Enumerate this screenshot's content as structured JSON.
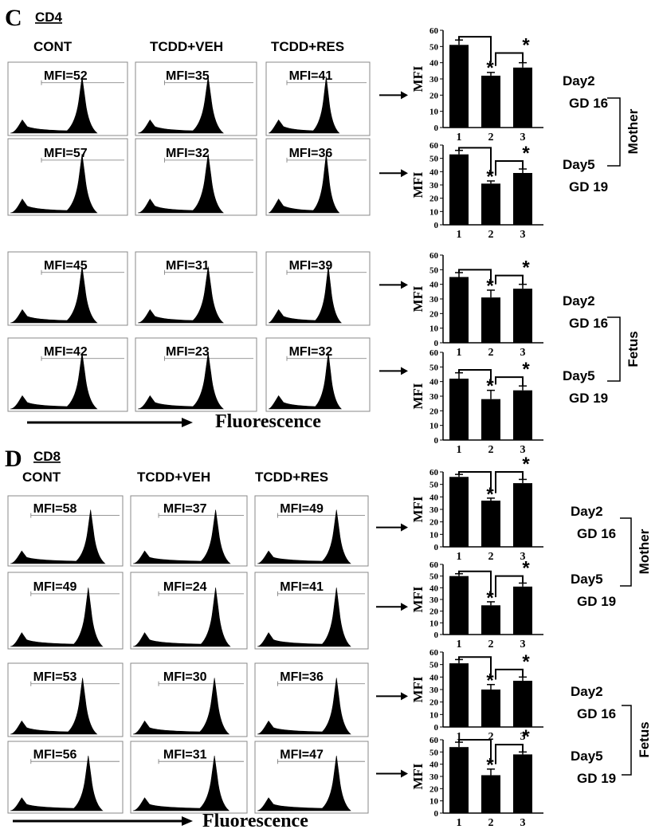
{
  "chart_data": [
    {
      "type": "bar",
      "panel": "C",
      "marker": "CD4",
      "column_headers": [
        "CONT",
        "TCDD+VEH",
        "TCDD+RES"
      ],
      "x_axis_label": "Fluorescence",
      "ylabel": "MFI",
      "categories": [
        "1",
        "2",
        "3"
      ],
      "ylim": [
        0,
        60
      ],
      "yticks": [
        0,
        10,
        20,
        30,
        40,
        50,
        60
      ],
      "rows": [
        {
          "day": "Day2",
          "gd": "GD 16",
          "group": "Mother",
          "mfi_labels": [
            "MFI=52",
            "MFI=35",
            "MFI=41"
          ],
          "values": [
            51,
            32,
            37
          ],
          "errors": [
            3,
            2,
            3
          ]
        },
        {
          "day": "Day5",
          "gd": "GD 19",
          "group": "Mother",
          "mfi_labels": [
            "MFI=57",
            "MFI=32",
            "MFI=36"
          ],
          "values": [
            53,
            31,
            39
          ],
          "errors": [
            3,
            2,
            3
          ]
        },
        {
          "day": "Day2",
          "gd": "GD 16",
          "group": "Fetus",
          "mfi_labels": [
            "MFI=45",
            "MFI=31",
            "MFI=39"
          ],
          "values": [
            45,
            31,
            37
          ],
          "errors": [
            3,
            5,
            3
          ]
        },
        {
          "day": "Day5",
          "gd": "GD 19",
          "group": "Fetus",
          "mfi_labels": [
            "MFI=42",
            "MFI=23",
            "MFI=32"
          ],
          "values": [
            42,
            28,
            34
          ],
          "errors": [
            4,
            6,
            3
          ]
        }
      ],
      "significance": "*",
      "group_labels": [
        "Mother",
        "Fetus"
      ]
    },
    {
      "type": "bar",
      "panel": "D",
      "marker": "CD8",
      "column_headers": [
        "CONT",
        "TCDD+VEH",
        "TCDD+RES"
      ],
      "x_axis_label": "Fluorescence",
      "ylabel": "MFI",
      "categories": [
        "1",
        "2",
        "3"
      ],
      "ylim": [
        0,
        60
      ],
      "yticks": [
        0,
        10,
        20,
        30,
        40,
        50,
        60
      ],
      "rows": [
        {
          "day": "Day2",
          "gd": "GD 16",
          "group": "Mother",
          "mfi_labels": [
            "MFI=58",
            "MFI=37",
            "MFI=49"
          ],
          "values": [
            56,
            37,
            51
          ],
          "errors": [
            2,
            2,
            3
          ]
        },
        {
          "day": "Day5",
          "gd": "GD 19",
          "group": "Mother",
          "mfi_labels": [
            "MFI=49",
            "MFI=24",
            "MFI=41"
          ],
          "values": [
            50,
            25,
            41
          ],
          "errors": [
            2,
            3,
            3
          ]
        },
        {
          "day": "Day2",
          "gd": "GD 16",
          "group": "Fetus",
          "mfi_labels": [
            "MFI=53",
            "MFI=30",
            "MFI=36"
          ],
          "values": [
            51,
            30,
            37
          ],
          "errors": [
            3,
            4,
            3
          ]
        },
        {
          "day": "Day5",
          "gd": "GD 19",
          "group": "Fetus",
          "mfi_labels": [
            "MFI=56",
            "MFI=31",
            "MFI=47"
          ],
          "values": [
            54,
            31,
            48
          ],
          "errors": [
            4,
            5,
            2
          ]
        }
      ],
      "significance": "*",
      "group_labels": [
        "Mother",
        "Fetus"
      ]
    }
  ],
  "histogram_peaks": {
    "description": "relative peak position (0-1 across plot) for each CONT/TCDD+VEH/TCDD+RES histogram, per row",
    "C": [
      [
        0.62,
        0.6,
        0.58
      ],
      [
        0.62,
        0.6,
        0.58
      ],
      [
        0.62,
        0.6,
        0.6
      ],
      [
        0.62,
        0.6,
        0.6
      ]
    ],
    "D": [
      [
        0.72,
        0.73,
        0.72
      ],
      [
        0.7,
        0.73,
        0.72
      ],
      [
        0.65,
        0.72,
        0.72
      ],
      [
        0.7,
        0.72,
        0.72
      ]
    ]
  },
  "styles": {
    "ink": "#000000",
    "background": "#ffffff",
    "bar_fill": "#000000",
    "frame": "#888888"
  }
}
